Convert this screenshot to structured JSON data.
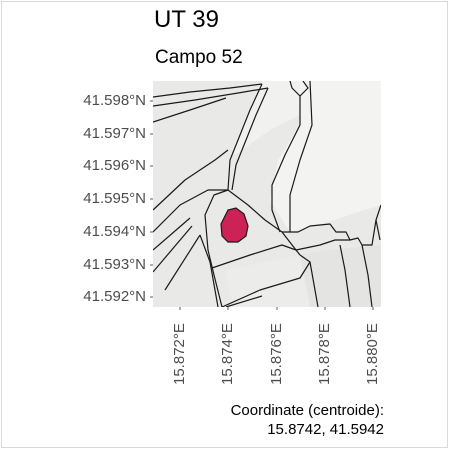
{
  "title": "UT 39",
  "subtitle": "Campo 52",
  "map": {
    "type": "map",
    "background_color": "#e8e8e6",
    "land_color": "#f2f2f0",
    "line_color": "#1a1a1a",
    "highlight_color": "#cc2255",
    "y_ticks": [
      "41.598°N",
      "41.597°N",
      "41.596°N",
      "41.595°N",
      "41.594°N",
      "41.593°N",
      "41.592°N"
    ],
    "x_ticks": [
      "15.872°E",
      "15.874°E",
      "15.876°E",
      "15.878°E",
      "15.880°E"
    ],
    "x_range": [
      15.8705,
      15.8806
    ],
    "y_range": [
      41.5917,
      41.5982
    ],
    "highlighted_parcel": {
      "name": "Campo 52",
      "centroid": [
        15.8742,
        41.5942
      ]
    },
    "grid": false
  },
  "caption": {
    "line1": "Coordinate (centroide):",
    "line2": "15.8742, 41.5942"
  }
}
